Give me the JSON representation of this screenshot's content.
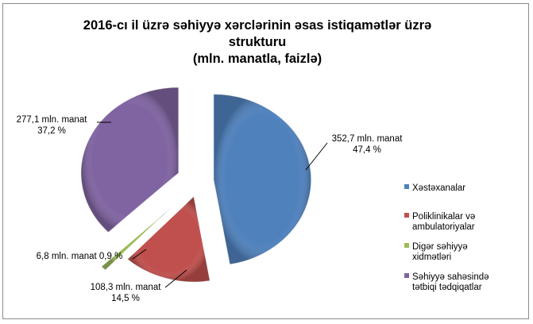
{
  "chart_data": {
    "type": "pie",
    "title_lines": [
      "2016-cı il üzrə səhiyyə xərclərinin əsas istiqamətlər üzrə",
      "strukturu",
      "(mln. manatla, faizlə)"
    ],
    "slices": [
      {
        "name": "Xəstəxanalar",
        "value": 352.7,
        "percent": 47.4,
        "color": "#4f81bd",
        "label_lines": [
          "352,7 mln. manat",
          "47,4 %"
        ]
      },
      {
        "name": "Poliklinikalar və ambulatoriyalar",
        "value": 108.3,
        "percent": 14.5,
        "color": "#c0504d",
        "label_lines": [
          "108,3 mln. manat",
          "14,5 %"
        ]
      },
      {
        "name": "Digər səhiyyə xidmətləri",
        "value": 6.8,
        "percent": 0.9,
        "color": "#9bbb59",
        "label_lines": [
          "6,8 mln. manat  0,9 %"
        ]
      },
      {
        "name": "Səhiyyə sahəsində tətbiqi tədqiqatlar",
        "value": 277.1,
        "percent": 37.2,
        "color": "#8064a2",
        "label_lines": [
          "277,1 mln. manat",
          "37,2 %"
        ]
      }
    ],
    "legend": {
      "placement": "right",
      "items": [
        {
          "lines": [
            "Xəstəxanalar"
          ],
          "color": "#4f81bd"
        },
        {
          "lines": [
            "Poliklinikalar və",
            "ambulatoriyalar"
          ],
          "color": "#c0504d"
        },
        {
          "lines": [
            "Digər səhiyyə",
            "xidmətləri"
          ],
          "color": "#9bbb59"
        },
        {
          "lines": [
            "Səhiyyə sahəsində",
            "tətbiqi tədqiqatlar"
          ],
          "color": "#8064a2"
        }
      ]
    },
    "exploded": true,
    "style": "3d-beveled"
  }
}
